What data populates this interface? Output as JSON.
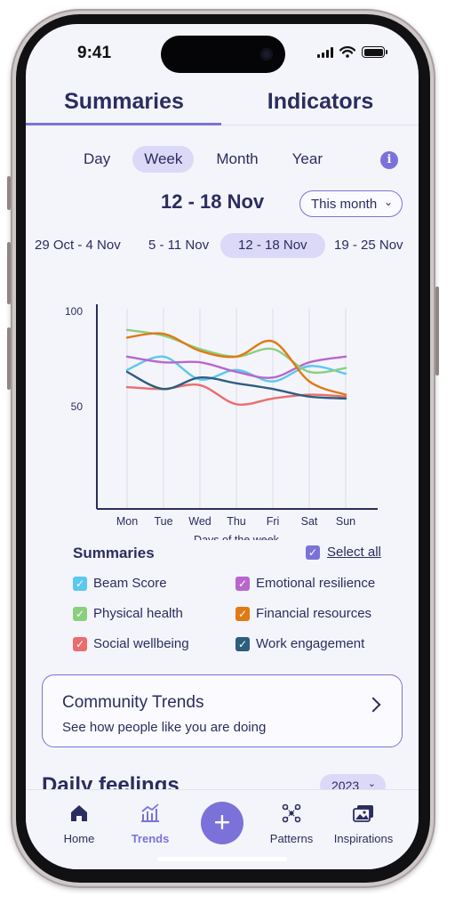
{
  "status": {
    "time": "9:41"
  },
  "top_tabs": [
    {
      "label": "Summaries"
    },
    {
      "label": "Indicators"
    }
  ],
  "period_tabs": [
    {
      "label": "Day"
    },
    {
      "label": "Week"
    },
    {
      "label": "Month"
    },
    {
      "label": "Year"
    }
  ],
  "period_selected": "Week",
  "info_icon": "i",
  "date_range": "12 - 18 Nov",
  "range_select": {
    "value": "This month"
  },
  "weeks": [
    {
      "label": "29 Oct - 4 Nov"
    },
    {
      "label": "5 - 11 Nov"
    },
    {
      "label": "12 - 18 Nov"
    },
    {
      "label": "19 - 25 Nov"
    }
  ],
  "week_selected": "12 - 18 Nov",
  "chart_data": {
    "type": "line",
    "categories": [
      "Mon",
      "Tue",
      "Wed",
      "Thu",
      "Fri",
      "Sat",
      "Sun"
    ],
    "xlabel": "Days of the week",
    "ylabel": "",
    "yticks": [
      100,
      50
    ],
    "ylim": [
      0,
      105
    ],
    "grid": "vertical",
    "series": [
      {
        "name": "Beam Score",
        "color": "#5bc8f0",
        "values": [
          73,
          80,
          68,
          73,
          67,
          75,
          71
        ]
      },
      {
        "name": "Emotional resilience",
        "color": "#b866cc",
        "values": [
          80,
          77,
          77,
          72,
          69,
          77,
          80
        ]
      },
      {
        "name": "Physical health",
        "color": "#8bcf7e",
        "values": [
          94,
          91,
          84,
          80,
          84,
          72,
          74
        ]
      },
      {
        "name": "Financial resources",
        "color": "#e07a12",
        "values": [
          90,
          92,
          83,
          80,
          88,
          67,
          60
        ]
      },
      {
        "name": "Social wellbeing",
        "color": "#ea6e6e",
        "values": [
          64,
          63,
          65,
          55,
          58,
          60,
          59
        ]
      },
      {
        "name": "Work engagement",
        "color": "#2e5e7d",
        "values": [
          72,
          63,
          69,
          66,
          63,
          59,
          58
        ]
      }
    ]
  },
  "summaries": {
    "title": "Summaries",
    "select_all": "Select all"
  },
  "community": {
    "title": "Community Trends",
    "subtitle": "See how people like you are doing"
  },
  "daily": {
    "title": "Daily feelings",
    "year": "2023"
  },
  "nav": [
    {
      "label": "Home",
      "icon": "home-icon"
    },
    {
      "label": "Trends",
      "icon": "trends-icon"
    },
    {
      "label": "Patterns",
      "icon": "patterns-icon"
    },
    {
      "label": "Inspirations",
      "icon": "inspirations-icon"
    }
  ],
  "fab_icon": "+",
  "colors": {
    "accent": "#7b72d9",
    "text": "#2b2d5e",
    "chip": "#dcd8f7"
  }
}
